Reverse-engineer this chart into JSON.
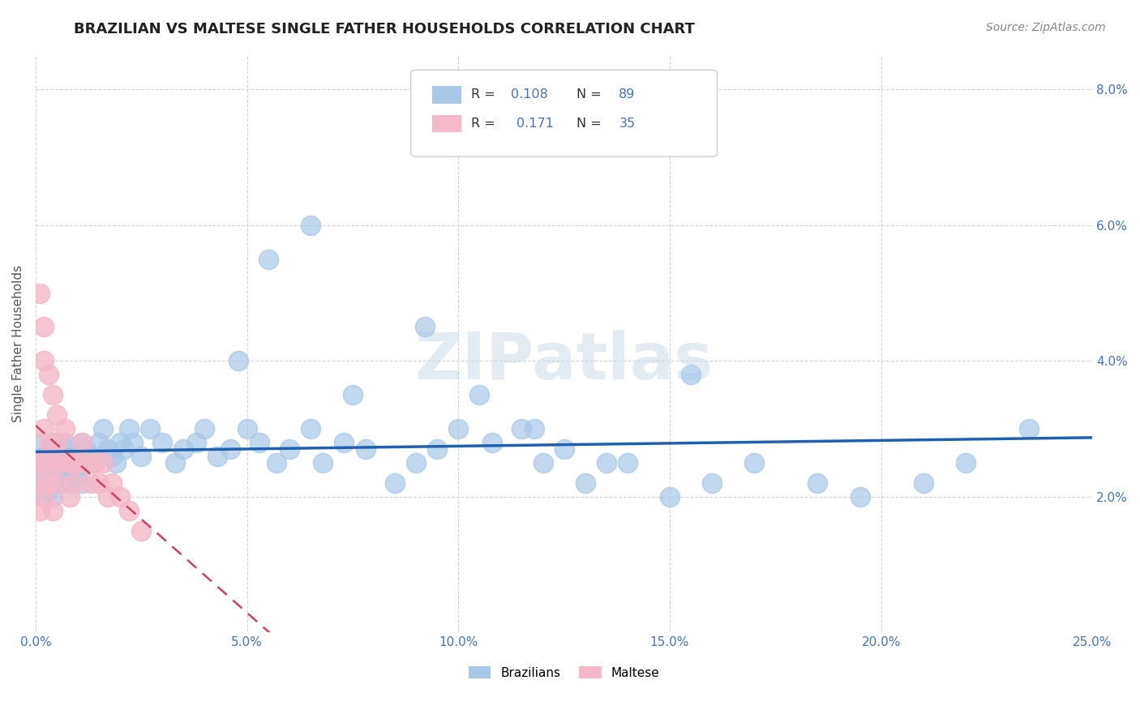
{
  "title": "BRAZILIAN VS MALTESE SINGLE FATHER HOUSEHOLDS CORRELATION CHART",
  "source": "Source: ZipAtlas.com",
  "ylabel": "Single Father Households",
  "watermark": "ZIPatlas",
  "xlim": [
    0.0,
    0.25
  ],
  "ylim": [
    0.0,
    0.085
  ],
  "xticks": [
    0.0,
    0.05,
    0.1,
    0.15,
    0.2,
    0.25
  ],
  "yticks": [
    0.02,
    0.04,
    0.06,
    0.08
  ],
  "xticklabels": [
    "0.0%",
    "5.0%",
    "10.0%",
    "15.0%",
    "20.0%",
    "25.0%"
  ],
  "yticklabels": [
    "2.0%",
    "4.0%",
    "6.0%",
    "8.0%"
  ],
  "color_brazilian": "#a8c8e8",
  "color_maltese": "#f4b8c8",
  "trendline_color_brazilian": "#2060b0",
  "trendline_color_maltese": "#d04060",
  "background_color": "#ffffff",
  "grid_color": "#c8c8c8",
  "brazil_x": [
    0.001,
    0.001,
    0.001,
    0.002,
    0.002,
    0.002,
    0.002,
    0.003,
    0.003,
    0.003,
    0.003,
    0.003,
    0.004,
    0.004,
    0.004,
    0.004,
    0.005,
    0.005,
    0.005,
    0.006,
    0.006,
    0.006,
    0.007,
    0.007,
    0.007,
    0.008,
    0.008,
    0.009,
    0.009,
    0.01,
    0.01,
    0.011,
    0.011,
    0.012,
    0.013,
    0.014,
    0.015,
    0.016,
    0.017,
    0.018,
    0.019,
    0.02,
    0.021,
    0.022,
    0.023,
    0.025,
    0.027,
    0.03,
    0.033,
    0.035,
    0.038,
    0.04,
    0.043,
    0.046,
    0.05,
    0.053,
    0.057,
    0.06,
    0.065,
    0.068,
    0.073,
    0.078,
    0.085,
    0.09,
    0.095,
    0.1,
    0.108,
    0.115,
    0.12,
    0.125,
    0.13,
    0.14,
    0.15,
    0.16,
    0.17,
    0.185,
    0.195,
    0.21,
    0.22,
    0.235,
    0.048,
    0.055,
    0.065,
    0.075,
    0.092,
    0.105,
    0.118,
    0.135,
    0.155
  ],
  "brazil_y": [
    0.025,
    0.022,
    0.028,
    0.024,
    0.02,
    0.026,
    0.023,
    0.025,
    0.022,
    0.027,
    0.021,
    0.024,
    0.023,
    0.026,
    0.02,
    0.028,
    0.025,
    0.023,
    0.027,
    0.024,
    0.022,
    0.026,
    0.025,
    0.023,
    0.028,
    0.022,
    0.027,
    0.024,
    0.026,
    0.025,
    0.023,
    0.028,
    0.022,
    0.027,
    0.026,
    0.025,
    0.028,
    0.03,
    0.027,
    0.026,
    0.025,
    0.028,
    0.027,
    0.03,
    0.028,
    0.026,
    0.03,
    0.028,
    0.025,
    0.027,
    0.028,
    0.03,
    0.026,
    0.027,
    0.03,
    0.028,
    0.025,
    0.027,
    0.03,
    0.025,
    0.028,
    0.027,
    0.022,
    0.025,
    0.027,
    0.03,
    0.028,
    0.03,
    0.025,
    0.027,
    0.022,
    0.025,
    0.02,
    0.022,
    0.025,
    0.022,
    0.02,
    0.022,
    0.025,
    0.03,
    0.04,
    0.055,
    0.06,
    0.035,
    0.045,
    0.035,
    0.03,
    0.025,
    0.038
  ],
  "malta_x": [
    0.001,
    0.001,
    0.001,
    0.002,
    0.002,
    0.002,
    0.003,
    0.003,
    0.004,
    0.004,
    0.005,
    0.005,
    0.006,
    0.007,
    0.008,
    0.008,
    0.009,
    0.01,
    0.011,
    0.012,
    0.013,
    0.014,
    0.015,
    0.016,
    0.017,
    0.018,
    0.02,
    0.022,
    0.025,
    0.001,
    0.002,
    0.002,
    0.003,
    0.004,
    0.005
  ],
  "malta_y": [
    0.022,
    0.018,
    0.025,
    0.025,
    0.02,
    0.03,
    0.028,
    0.022,
    0.025,
    0.018,
    0.028,
    0.022,
    0.025,
    0.03,
    0.025,
    0.02,
    0.022,
    0.025,
    0.028,
    0.025,
    0.022,
    0.025,
    0.022,
    0.025,
    0.02,
    0.022,
    0.02,
    0.018,
    0.015,
    0.05,
    0.045,
    0.04,
    0.038,
    0.035,
    0.032
  ]
}
